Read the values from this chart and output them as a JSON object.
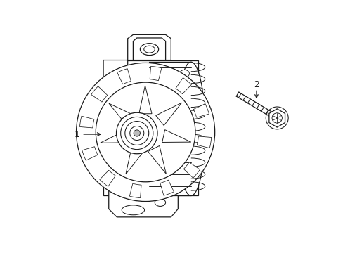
{
  "background_color": "#ffffff",
  "line_color": "#1a1a1a",
  "line_width": 0.9,
  "label_1": "1",
  "label_2": "2",
  "fig_width": 4.89,
  "fig_height": 3.6,
  "dpi": 100
}
